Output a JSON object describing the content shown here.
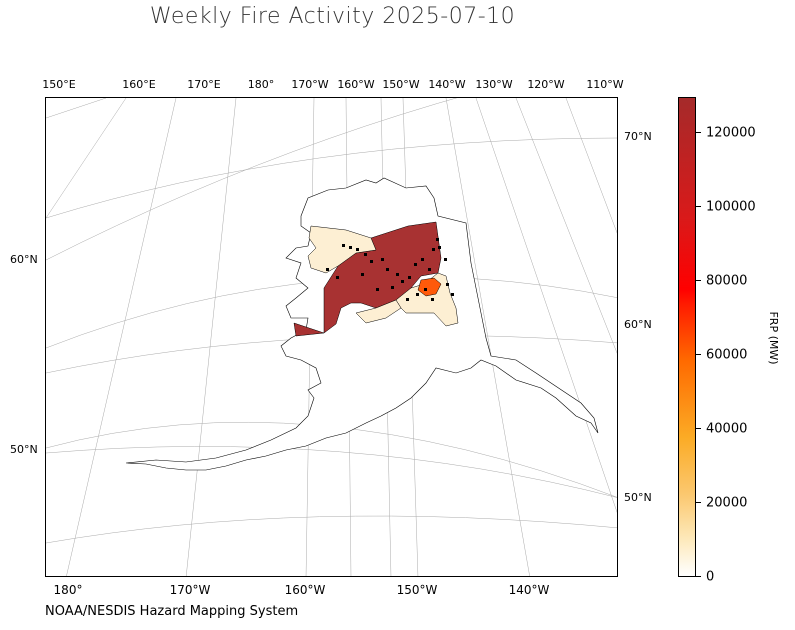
{
  "title": "Weekly Fire Activity 2025-07-10",
  "source": "NOAA/NESDIS Hazard Mapping System",
  "top_lon_labels": [
    "150°E",
    "160°E",
    "170°E",
    "180°",
    "170°W",
    "160°W",
    "150°W",
    "140°W",
    "130°W",
    "120°W",
    "110°W"
  ],
  "bottom_lon_labels": [
    "180°",
    "170°W",
    "160°W",
    "150°W",
    "140°W"
  ],
  "left_lat_labels": [
    "60°N",
    "50°N"
  ],
  "right_lat_labels": [
    "70°N",
    "60°N",
    "50°N"
  ],
  "colorbar": {
    "title": "FRP (MW)",
    "ticks": [
      "0",
      "20000",
      "40000",
      "60000",
      "80000",
      "100000",
      "120000"
    ],
    "max": 130000,
    "colors": {
      "low": "#ffffff",
      "mid_low": "#fbc870",
      "mid": "#ff8c00",
      "high": "#ff0000",
      "max": "#a52a2a"
    }
  },
  "region_colors": {
    "max_frp": "#a83232",
    "low_frp": "#fdefd3",
    "hot_spot": "#ff5a0a",
    "fire_dot": "#000000"
  }
}
